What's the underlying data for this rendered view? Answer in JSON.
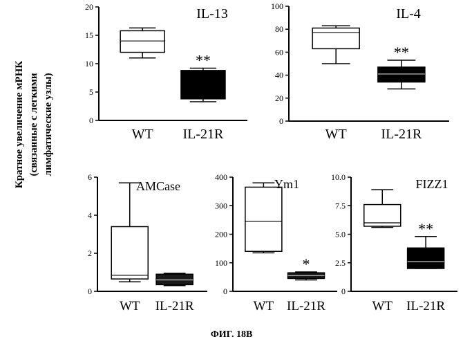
{
  "figure": {
    "ylabel_lines": [
      "Кратное увеличение мРНК",
      "(связанные с легкими",
      "лимфатические узлы)"
    ],
    "caption": "ФИГ. 18B"
  },
  "chart_data": [
    {
      "type": "box",
      "title": "IL-13",
      "categories": [
        "WT",
        "IL-21R"
      ],
      "ylim": [
        0,
        20
      ],
      "yticks": [
        "0",
        "5",
        "10",
        "15",
        "20"
      ],
      "boxes": [
        {
          "name": "WT",
          "min": 11,
          "q1": 12,
          "median": 14,
          "q3": 15.8,
          "max": 16.3,
          "fill": "#ffffff",
          "median_color": "#000000"
        },
        {
          "name": "IL-21R",
          "min": 3.3,
          "q1": 3.8,
          "median": 6.5,
          "q3": 8.8,
          "max": 9.2,
          "fill": "#000000",
          "median_color": "#000000"
        }
      ],
      "annotations": [
        {
          "category": "IL-21R",
          "text": "**"
        }
      ]
    },
    {
      "type": "box",
      "title": "IL-4",
      "categories": [
        "WT",
        "IL-21R"
      ],
      "ylim": [
        0,
        100
      ],
      "yticks": [
        "0",
        "20",
        "40",
        "60",
        "80",
        "100"
      ],
      "boxes": [
        {
          "name": "WT",
          "min": 50,
          "q1": 63,
          "median": 77,
          "q3": 81,
          "max": 83,
          "fill": "#ffffff",
          "median_color": "#000000"
        },
        {
          "name": "IL-21R",
          "min": 28,
          "q1": 34,
          "median": 41,
          "q3": 47,
          "max": 53,
          "fill": "#000000",
          "median_color": "#cccccc"
        }
      ],
      "annotations": [
        {
          "category": "IL-21R",
          "text": "**"
        }
      ]
    },
    {
      "type": "box",
      "title": "AMCase",
      "categories": [
        "WT",
        "IL-21R"
      ],
      "ylim": [
        0,
        6
      ],
      "yticks": [
        "0",
        "2",
        "4",
        "6"
      ],
      "boxes": [
        {
          "name": "WT",
          "min": 0.5,
          "q1": 0.65,
          "median": 0.85,
          "q3": 3.4,
          "max": 5.7,
          "fill": "#ffffff",
          "median_color": "#000000"
        },
        {
          "name": "IL-21R",
          "min": 0.3,
          "q1": 0.35,
          "median": 0.6,
          "q3": 0.9,
          "max": 0.95,
          "fill": "#1a1a1a",
          "median_color": "#cccccc"
        }
      ],
      "annotations": []
    },
    {
      "type": "box",
      "title": "Ym1",
      "categories": [
        "WT",
        "IL-21R"
      ],
      "ylim": [
        0,
        400
      ],
      "yticks": [
        "0",
        "100",
        "200",
        "300",
        "400"
      ],
      "boxes": [
        {
          "name": "WT",
          "min": 135,
          "q1": 140,
          "median": 245,
          "q3": 365,
          "max": 380,
          "fill": "#ffffff",
          "median_color": "#000000"
        },
        {
          "name": "IL-21R",
          "min": 40,
          "q1": 45,
          "median": 55,
          "q3": 65,
          "max": 68,
          "fill": "#1a1a1a",
          "median_color": "#cccccc"
        }
      ],
      "annotations": [
        {
          "category": "IL-21R",
          "text": "*"
        }
      ]
    },
    {
      "type": "box",
      "title": "FIZZ1",
      "categories": [
        "WT",
        "IL-21R"
      ],
      "ylim": [
        0,
        10
      ],
      "yticks": [
        "0",
        "2.5",
        "5.0",
        "7.5",
        "10.0"
      ],
      "boxes": [
        {
          "name": "WT",
          "min": 5.6,
          "q1": 5.7,
          "median": 6.0,
          "q3": 7.6,
          "max": 8.9,
          "fill": "#ffffff",
          "median_color": "#000000"
        },
        {
          "name": "IL-21R",
          "min": 2.0,
          "q1": 2.0,
          "median": 2.6,
          "q3": 3.8,
          "max": 4.8,
          "fill": "#000000",
          "median_color": "#cccccc"
        }
      ],
      "annotations": [
        {
          "category": "IL-21R",
          "text": "**"
        }
      ]
    }
  ]
}
